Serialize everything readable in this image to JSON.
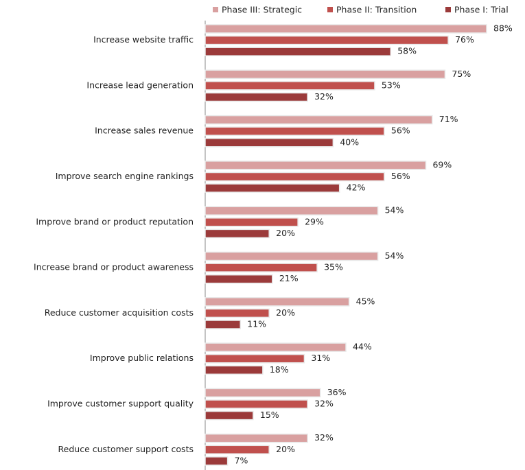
{
  "chart_data": {
    "type": "bar",
    "orientation": "horizontal",
    "categories": [
      "Increase website traffic",
      "Increase lead generation",
      "Increase sales revenue",
      "Improve search engine rankings",
      "Improve brand or product reputation",
      "Increase brand or product awareness",
      "Reduce customer acquisition costs",
      "Improve public relations",
      "Improve customer support quality",
      "Reduce customer support costs"
    ],
    "series": [
      {
        "name": "Phase III: Strategic",
        "color": "#d9a0a0",
        "values": [
          88,
          75,
          71,
          69,
          54,
          54,
          45,
          44,
          36,
          32
        ],
        "value_labels": [
          "88%",
          "75%",
          "71%",
          "69%",
          "54%",
          "54%",
          "45%",
          "44%",
          "36%",
          "32%"
        ]
      },
      {
        "name": "Phase II: Transition",
        "color": "#c0504d",
        "values": [
          76,
          53,
          56,
          56,
          29,
          35,
          20,
          31,
          32,
          20
        ],
        "value_labels": [
          "76%",
          "53%",
          "56%",
          "56%",
          "29%",
          "35%",
          "20%",
          "31%",
          "32%",
          "20%"
        ]
      },
      {
        "name": "Phase I: Trial",
        "color": "#9b3a3a",
        "values": [
          58,
          32,
          40,
          42,
          20,
          21,
          11,
          18,
          15,
          7
        ],
        "value_labels": [
          "58%",
          "32%",
          "40%",
          "42%",
          "20%",
          "21%",
          "11%",
          "18%",
          "15%",
          "7%"
        ]
      }
    ],
    "legend": "top"
  }
}
